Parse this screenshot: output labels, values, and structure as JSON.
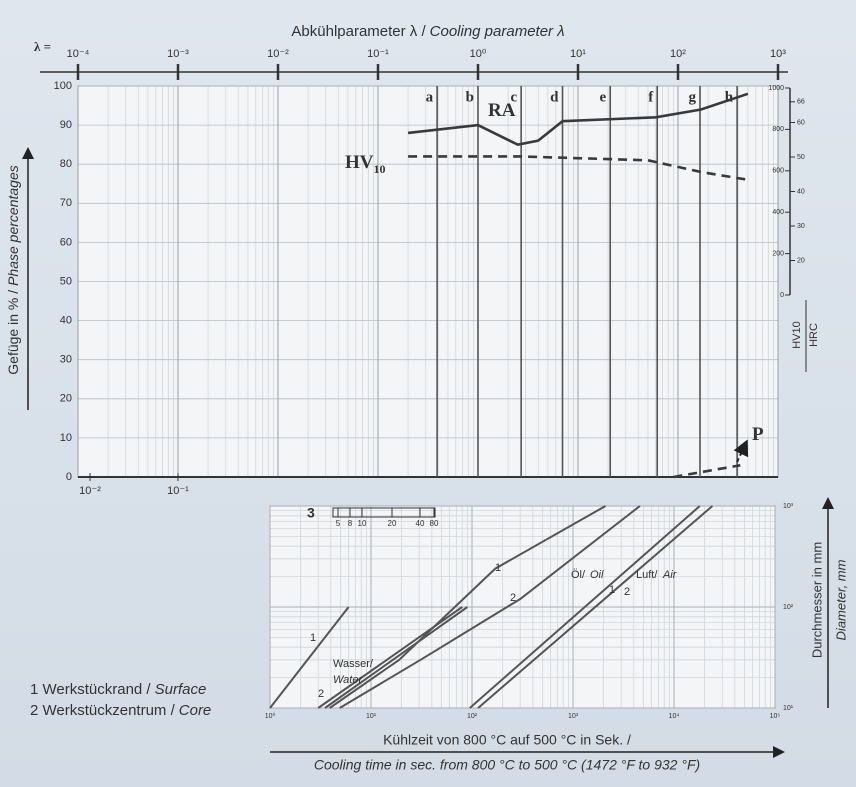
{
  "chart_data": [
    {
      "type": "line",
      "title": {
        "de": "Abkühlparameter λ /",
        "en": "Cooling parameter λ"
      },
      "x_prefix": "λ =",
      "y_label": {
        "de": "Gefüge in % /",
        "en": "Phase percentages"
      },
      "xscale": "log",
      "xlim": [
        0.0001,
        1000
      ],
      "xticks": [
        {
          "value": 0.0001,
          "label": "10⁻⁴"
        },
        {
          "value": 0.001,
          "label": "10⁻³"
        },
        {
          "value": 0.01,
          "label": "10⁻²"
        },
        {
          "value": 0.1,
          "label": "10⁻¹"
        },
        {
          "value": 1,
          "label": "10⁰"
        },
        {
          "value": 10,
          "label": "10¹"
        },
        {
          "value": 100,
          "label": "10²"
        },
        {
          "value": 1000,
          "label": "10³"
        }
      ],
      "x2lim": [
        0.0073,
        660000
      ],
      "x2ticks": [
        {
          "value": 0.01,
          "label": "10⁻²"
        },
        {
          "value": 0.1,
          "label": "10⁻¹"
        }
      ],
      "ylim": [
        0,
        100
      ],
      "yticks": [
        0,
        10,
        20,
        30,
        40,
        50,
        60,
        70,
        80,
        90,
        100
      ],
      "grid": true,
      "markers": {
        "labels": [
          "a",
          "b",
          "c",
          "d",
          "e",
          "f",
          "g",
          "h"
        ],
        "x": [
          0.39,
          1,
          2.7,
          7,
          21,
          62,
          166,
          390
        ]
      },
      "series": [
        {
          "name": "RA",
          "color": "#3a3a3a",
          "dash": false,
          "x": [
            0.2,
            1,
            2.5,
            4,
            7,
            60,
            170,
            500
          ],
          "values": [
            88,
            90,
            85,
            86,
            91,
            92,
            94,
            98
          ]
        },
        {
          "name": "HV",
          "name_sub": "10",
          "color": "#3a3a3a",
          "dash": true,
          "x": [
            0.2,
            2.6,
            50,
            170,
            500
          ],
          "values": [
            82,
            82,
            81,
            78,
            76
          ]
        },
        {
          "name": "P",
          "color": "#3a3a3a",
          "dash": true,
          "x": [
            90,
            250,
            420
          ],
          "values": [
            0,
            2,
            3
          ]
        }
      ],
      "y2": {
        "label": "HV10",
        "lim": [
          0,
          1000
        ],
        "ticks": [
          0,
          200,
          400,
          600,
          800,
          1000
        ]
      },
      "y3": {
        "label": "HRC",
        "lim": [
          10,
          70
        ],
        "ticks": [
          20,
          30,
          40,
          50,
          60,
          66
        ]
      }
    },
    {
      "type": "line",
      "xscale": "log",
      "yscale": "log",
      "xlim": [
        1,
        100000
      ],
      "xticks": [
        {
          "value": 1,
          "label": "10⁰"
        },
        {
          "value": 10,
          "label": "10¹"
        },
        {
          "value": 100,
          "label": "10²"
        },
        {
          "value": 1000,
          "label": "10³"
        },
        {
          "value": 10000,
          "label": "10⁴"
        },
        {
          "value": 100000,
          "label": "10⁵"
        }
      ],
      "ylim": [
        10,
        1000
      ],
      "yticks": [
        {
          "value": 10,
          "label": "10¹"
        },
        {
          "value": 100,
          "label": "10²"
        },
        {
          "value": 1000,
          "label": "10³"
        }
      ],
      "grid": true,
      "x_label": {
        "de": "Kühlzeit von 800 °C auf 500 °C in Sek. /",
        "en": "Cooling time in sec. from 800 °C to 500 °C (1472 °F to 932 °F)"
      },
      "y_label": {
        "de": "Durchmesser in mm",
        "en": "Diameter, mm"
      },
      "series": [
        {
          "color": "#555555",
          "x": [
            1,
            6
          ],
          "values": [
            10,
            100
          ]
        },
        {
          "color": "#555555",
          "x": [
            3,
            80
          ],
          "values": [
            10,
            100
          ]
        },
        {
          "color": "#555555",
          "x": [
            3.5,
            90
          ],
          "values": [
            10,
            100
          ]
        },
        {
          "color": "#555555",
          "x": [
            3.9,
            19,
            170,
            2100
          ],
          "values": [
            10,
            30,
            240,
            1000
          ]
        },
        {
          "color": "#555555",
          "x": [
            4.9,
            31,
            300,
            4600
          ],
          "values": [
            10,
            30,
            120,
            1000
          ]
        },
        {
          "color": "#555555",
          "x": [
            95,
            18000
          ],
          "values": [
            10,
            1000
          ]
        },
        {
          "color": "#555555",
          "x": [
            115,
            24000
          ],
          "values": [
            10,
            1000
          ]
        }
      ],
      "curve_labels": [
        "1",
        "2",
        "Wasser/",
        "Water",
        "1",
        "2",
        "Öl/",
        "Oil",
        "1",
        "2",
        "Luft/",
        "Air"
      ],
      "scale": {
        "label": "3",
        "ticks": [
          5,
          8,
          10,
          20,
          40,
          80
        ]
      },
      "notes": [
        {
          "de": "1 Werkstückrand /",
          "en": "Surface"
        },
        {
          "de": "2 Werkstückzentrum /",
          "en": "Core"
        }
      ]
    }
  ]
}
